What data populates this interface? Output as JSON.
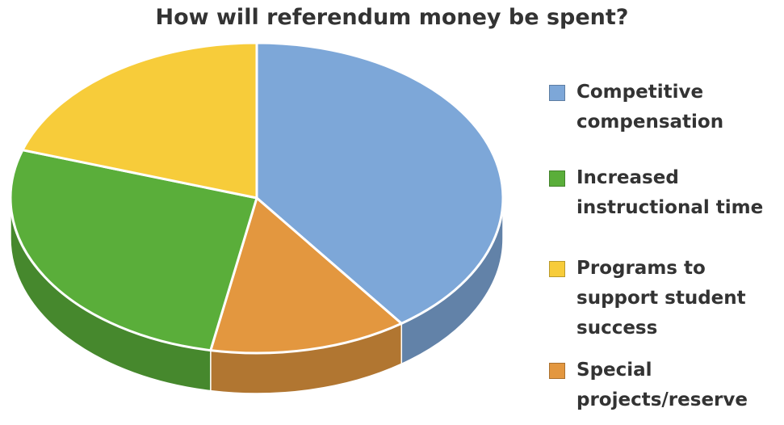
{
  "chart_data": {
    "type": "pie",
    "title": "How will referendum money be spent?",
    "slices": [
      {
        "label": "Competitive compensation",
        "value": 0.4,
        "color": "#7DA7D8"
      },
      {
        "label": "Special projects/reserve",
        "value": 0.13,
        "color": "#E3973F"
      },
      {
        "label": "Increased instructional time",
        "value": 0.27,
        "color": "#5AAE3A"
      },
      {
        "label": "Programs to support student success",
        "value": 0.2,
        "color": "#F7CC3A"
      }
    ],
    "legend_order": [
      0,
      2,
      3,
      1
    ],
    "legend_position": "right",
    "style": "3d-tilted"
  }
}
